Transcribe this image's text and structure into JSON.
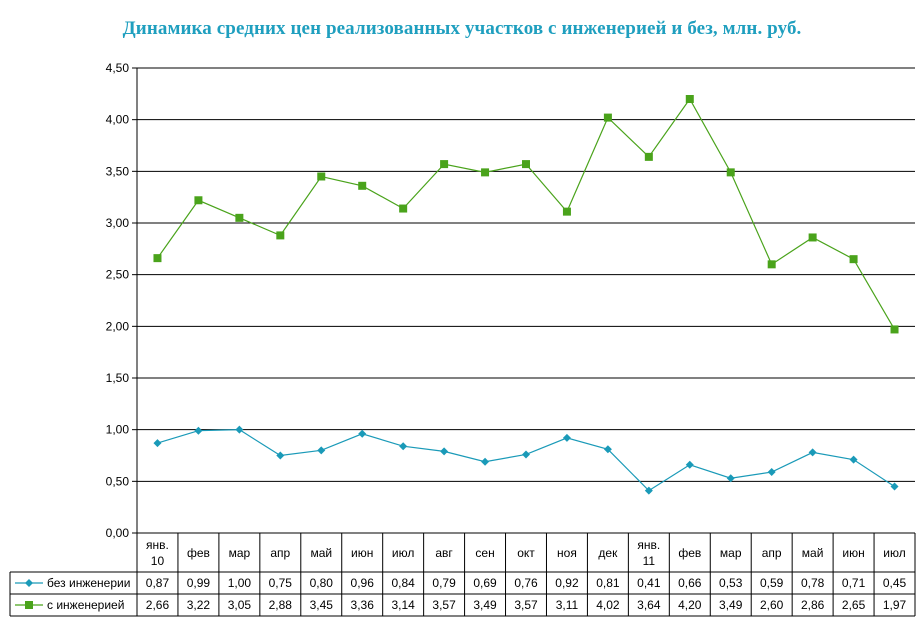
{
  "chart_data": {
    "type": "line",
    "title": "Динамика средних цен реализованных участков с инженерией и без, млн. руб.",
    "categories": [
      [
        "янв.",
        "10"
      ],
      [
        "фев"
      ],
      [
        "мар"
      ],
      [
        "апр"
      ],
      [
        "май"
      ],
      [
        "июн"
      ],
      [
        "июл"
      ],
      [
        "авг"
      ],
      [
        "сен"
      ],
      [
        "окт"
      ],
      [
        "ноя"
      ],
      [
        "дек"
      ],
      [
        "янв.",
        "11"
      ],
      [
        "фев"
      ],
      [
        "мар"
      ],
      [
        "апр"
      ],
      [
        "май"
      ],
      [
        "июн"
      ],
      [
        "июл"
      ]
    ],
    "ylim": [
      0,
      4.5
    ],
    "yticks": [
      "0,00",
      "0,50",
      "1,00",
      "1,50",
      "2,00",
      "2,50",
      "3,00",
      "3,50",
      "4,00",
      "4,50"
    ],
    "grid": true,
    "legend": "data table below chart",
    "series": [
      {
        "name": "без инженерии",
        "color": "#1a9ab8",
        "marker": "diamond",
        "values": [
          0.87,
          0.99,
          1.0,
          0.75,
          0.8,
          0.96,
          0.84,
          0.79,
          0.69,
          0.76,
          0.92,
          0.81,
          0.41,
          0.66,
          0.53,
          0.59,
          0.78,
          0.71,
          0.45
        ],
        "labels": [
          "0,87",
          "0,99",
          "1,00",
          "0,75",
          "0,80",
          "0,96",
          "0,84",
          "0,79",
          "0,69",
          "0,76",
          "0,92",
          "0,81",
          "0,41",
          "0,66",
          "0,53",
          "0,59",
          "0,78",
          "0,71",
          "0,45"
        ]
      },
      {
        "name": "с инженерией",
        "color": "#4aa31b",
        "marker": "square",
        "values": [
          2.66,
          3.22,
          3.05,
          2.88,
          3.45,
          3.36,
          3.14,
          3.57,
          3.49,
          3.57,
          3.11,
          4.02,
          3.64,
          4.2,
          3.49,
          2.6,
          2.86,
          2.65,
          1.97
        ],
        "labels": [
          "2,66",
          "3,22",
          "3,05",
          "2,88",
          "3,45",
          "3,36",
          "3,14",
          "3,57",
          "3,49",
          "3,57",
          "3,11",
          "4,02",
          "3,64",
          "4,20",
          "3,49",
          "2,60",
          "2,86",
          "2,65",
          "1,97"
        ]
      }
    ]
  }
}
